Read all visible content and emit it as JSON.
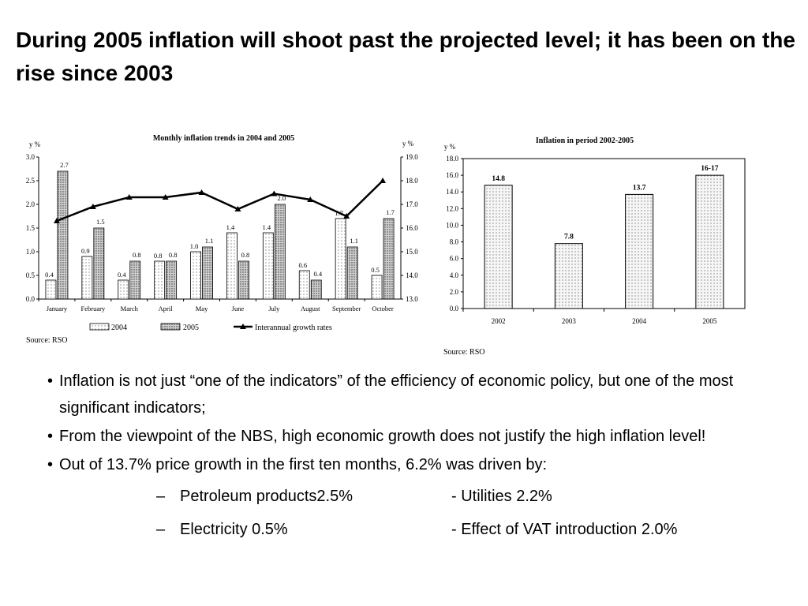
{
  "slide": {
    "title": "During 2005 inflation will shoot past the projected level; it has been on the rise since 2003",
    "bullets": [
      "Inflation is not just “one of the indicators” of the efficiency of economic policy, but one of the most significant indicators;",
      "From the viewpoint of the NBS, high economic growth does not justify the high inflation level!",
      "Out of 13.7% price growth in the first ten months, 6.2% was driven by:"
    ],
    "bullet_marker": "•",
    "sub_marker": "–",
    "sub_items": [
      {
        "left": "Petroleum products2.5%",
        "right": "- Utilities 2.2%"
      },
      {
        "left": "Electricity 0.5%",
        "right": "- Effect of VAT introduction 2.0%"
      }
    ]
  },
  "chart_data": [
    {
      "type": "bar",
      "title": "Monthly inflation trends in 2004 and 2005",
      "ylabel": "y %",
      "y2label": "y %",
      "ylim": [
        0,
        3.0
      ],
      "y2lim": [
        13.0,
        19.0
      ],
      "yticks": [
        "0.0",
        "0.5",
        "1.0",
        "1.5",
        "2.0",
        "2.5",
        "3.0"
      ],
      "y2ticks": [
        "13.0",
        "14.0",
        "15.0",
        "16.0",
        "17.0",
        "18.0",
        "19.0"
      ],
      "categories": [
        "January",
        "February",
        "March",
        "April",
        "May",
        "June",
        "July",
        "August",
        "September",
        "October"
      ],
      "series": [
        {
          "name": "2004",
          "type": "bar",
          "values": [
            0.4,
            0.9,
            0.4,
            0.8,
            1.0,
            1.4,
            1.4,
            0.6,
            1.7,
            0.5
          ],
          "labels": [
            "0.4",
            "0.9",
            "0.4",
            "0.8",
            "1.0",
            "1.4",
            "1.4",
            "0.6",
            "1.7",
            "0.5"
          ]
        },
        {
          "name": "2005",
          "type": "bar",
          "values": [
            2.7,
            1.5,
            0.8,
            0.8,
            1.1,
            0.8,
            2.0,
            0.4,
            1.1,
            1.7
          ],
          "labels": [
            "2.7",
            "1.5",
            "0.8",
            "0.8",
            "1.1",
            "0.8",
            "2.0",
            "0.4",
            "1.1",
            "1.7"
          ]
        },
        {
          "name": "Interannual growth rates",
          "type": "line",
          "axis": "right",
          "values": [
            16.3,
            16.9,
            17.3,
            17.3,
            17.5,
            16.8,
            17.45,
            17.2,
            16.5,
            18.0
          ]
        }
      ],
      "legend_position": "bottom",
      "source": "Source: RSO"
    },
    {
      "type": "bar",
      "title": "Inflation in period 2002-2005",
      "ylabel": "y %",
      "ylim": [
        0,
        18.0
      ],
      "yticks": [
        "0.0",
        "2.0",
        "4.0",
        "6.0",
        "8.0",
        "10.0",
        "12.0",
        "14.0",
        "16.0",
        "18.0"
      ],
      "categories": [
        "2002",
        "2003",
        "2004",
        "2005"
      ],
      "values": [
        14.8,
        7.8,
        13.7,
        16.0
      ],
      "labels": [
        "14.8",
        "7.8",
        "13.7",
        "16-17"
      ],
      "source": "Source: RSO"
    }
  ]
}
